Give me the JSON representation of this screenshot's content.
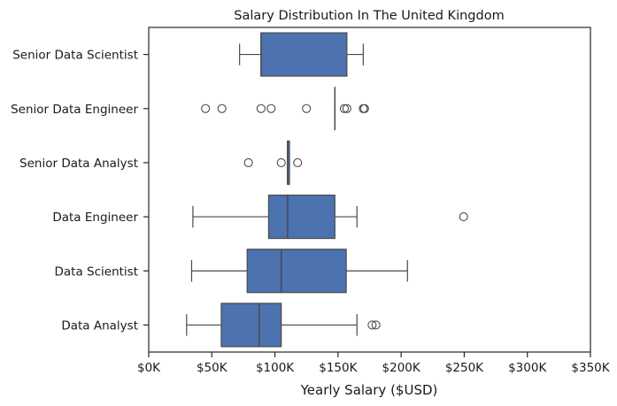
{
  "chart_data": {
    "type": "boxplot",
    "orientation": "horizontal",
    "title": "Salary Distribution In The United Kingdom",
    "xlabel": "Yearly Salary ($USD)",
    "ylabel": "",
    "xlim": [
      0,
      350000
    ],
    "x_ticks": [
      0,
      50000,
      100000,
      150000,
      200000,
      250000,
      300000,
      350000
    ],
    "x_tick_labels": [
      "$0K",
      "$50K",
      "$100K",
      "$150K",
      "$200K",
      "$250K",
      "$300K",
      "$350K"
    ],
    "grid": false,
    "box_color": "#4c72b0",
    "categories": [
      "Senior Data Scientist",
      "Senior Data Engineer",
      "Senior Data Analyst",
      "Data Engineer",
      "Data Scientist",
      "Data Analyst"
    ],
    "boxes": [
      {
        "name": "Senior Data Scientist",
        "whisker_low": 72000,
        "q1": 89000,
        "median": 89000,
        "q3": 157000,
        "whisker_high": 170000,
        "outliers": []
      },
      {
        "name": "Senior Data Engineer",
        "whisker_low": 147500,
        "q1": 147500,
        "median": 147500,
        "q3": 147500,
        "whisker_high": 147500,
        "outliers": [
          45000,
          58000,
          89000,
          97000,
          125000,
          155000,
          157000,
          170000,
          171000
        ]
      },
      {
        "name": "Senior Data Analyst",
        "whisker_low": 110000,
        "q1": 110000,
        "median": 110000,
        "q3": 111500,
        "whisker_high": 111500,
        "outliers": [
          79000,
          105000,
          118000
        ]
      },
      {
        "name": "Data Engineer",
        "whisker_low": 35000,
        "q1": 95000,
        "median": 110000,
        "q3": 147500,
        "whisker_high": 165000,
        "outliers": [
          249500
        ]
      },
      {
        "name": "Data Scientist",
        "whisker_low": 34000,
        "q1": 78000,
        "median": 105000,
        "q3": 156500,
        "whisker_high": 205000,
        "outliers": []
      },
      {
        "name": "Data Analyst",
        "whisker_low": 30000,
        "q1": 57500,
        "median": 87500,
        "q3": 105000,
        "whisker_high": 165000,
        "outliers": [
          177000,
          180000
        ]
      }
    ]
  }
}
